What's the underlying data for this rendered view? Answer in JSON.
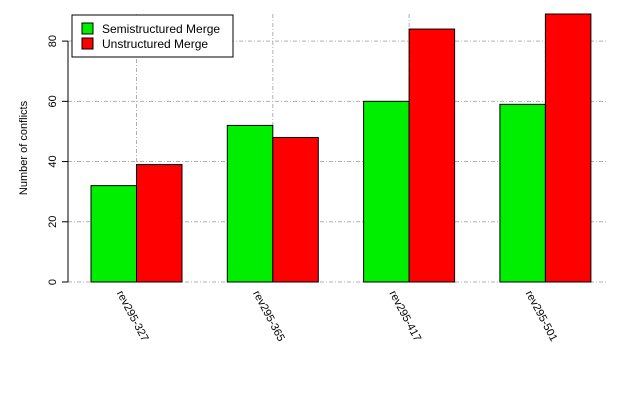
{
  "chart_data": {
    "type": "bar",
    "title": "",
    "xlabel": "",
    "ylabel": "Number of conflicts",
    "categories": [
      "rev295-327",
      "rev295-365",
      "rev295-417",
      "rev295-501"
    ],
    "series": [
      {
        "name": "Semistructured Merge",
        "color": "#00ee00",
        "values": [
          32,
          52,
          60,
          59
        ]
      },
      {
        "name": "Unstructured Merge",
        "color": "#ff0000",
        "values": [
          39,
          48,
          84,
          89
        ]
      }
    ],
    "ylim": [
      0,
      89
    ],
    "yticks": [
      0,
      20,
      40,
      60,
      80
    ],
    "grid": true,
    "legend": "top-left"
  }
}
